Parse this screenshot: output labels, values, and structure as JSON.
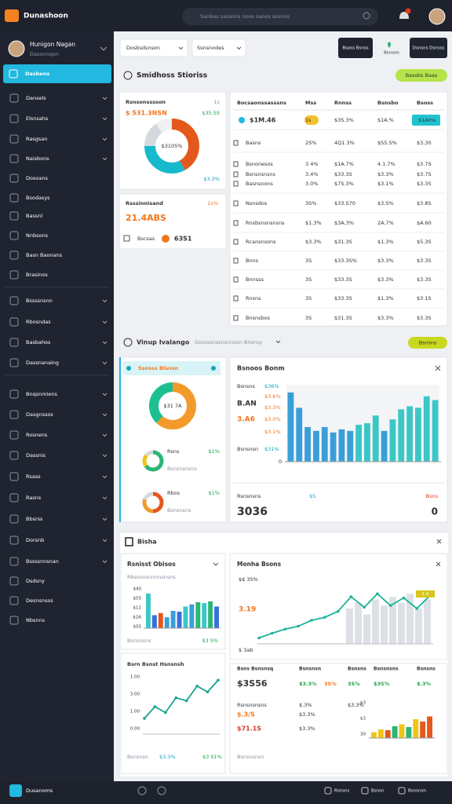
{
  "header": {
    "brand": "Dunashoon",
    "search": "Sanbos sassons noos sanos sosnos"
  },
  "user": {
    "name": "Hunigon Nagan",
    "role": "Dasonnqon"
  },
  "sidebar": {
    "active": "Dasbens",
    "items": [
      "Dansels",
      "Elsnsahs",
      "Rasgsan",
      "Naisbons",
      "Dosoans",
      "Bsodasys",
      "Bassnl",
      "Nnbsons",
      "Basn Baonans",
      "Brasinos",
      "Bssssnsnn",
      "Rbosndas",
      "Basbahos",
      "Dassnanaing",
      "Bnqsnmiens",
      "Dasgnssos",
      "Rosnens",
      "Dassnis",
      "Rsass",
      "Rasns",
      "Bbsrss",
      "Dorsnb",
      "Bssssnnsnan",
      "Dsdsny",
      "Desnsnsos",
      "Nbsnns"
    ]
  },
  "toolbar": {
    "filters": [
      "Dosbsdsnson",
      "Ssnsnodes"
    ],
    "buttons": [
      "Bsass Bsnss",
      "Bsnson",
      "Dsnsns Dsnsss"
    ]
  },
  "section1": {
    "title": "Smidhoss Stioriss",
    "action": "Bassbs Baas"
  },
  "donut_card": {
    "title": "Rsnsonsssson",
    "badge": "1s",
    "value": "$ 531.3NSN",
    "delta": "$35.5S",
    "center": "$3105%",
    "foot": "$3.3%",
    "values": [
      42,
      33,
      15,
      10
    ],
    "colors": [
      "#e4581c",
      "#17b9cc",
      "#d5d9de",
      "#eef0f2"
    ]
  },
  "small_card": {
    "title": "Rsssinnisand",
    "badge": "1s%",
    "value": "21.4ABS",
    "label": "Bscsas",
    "value2": "63S1"
  },
  "table": {
    "columns": [
      "Bocsaonssasssns",
      "Mss",
      "Rnnss",
      "Bsnsbo",
      "Bsoss"
    ],
    "rows": [
      {
        "cells": [
          "$1M.46",
          "1s",
          "$3S.3%",
          "$1A.%",
          "$1Ams"
        ],
        "colors": [
          "#222",
          "#222",
          "#d63b2b",
          "#d63b2b",
          "#fff"
        ]
      },
      {
        "cells": [
          "Basns",
          "2S%",
          "4Q1.3%",
          "$S5.S%",
          "$3.30"
        ],
        "colors": [
          "#333",
          "#777",
          "#1fa34a",
          "#777",
          "#555"
        ]
      },
      {
        "cells": [
          "Bsnonesos",
          "3 4%",
          "$1A.7%",
          "4.1.7%",
          "$3.7S"
        ],
        "colors": [
          "#333",
          "#555",
          "#1fa34a",
          "#f2761f",
          "#d63b2b"
        ]
      },
      {
        "cells": [
          "Bsnsnsnsns",
          "3.4%",
          "$33.3S",
          "$3.3%",
          "$3.7S"
        ],
        "colors": [
          "#333",
          "#555",
          "#1fa34a",
          "#555",
          "#555"
        ]
      },
      {
        "cells": [
          "Basnsnons",
          "3.0%",
          "$7S.3%",
          "$3.1%",
          "$3.3S"
        ],
        "colors": [
          "#333",
          "#555",
          "#d63b2b",
          "#555",
          "#555"
        ]
      },
      {
        "cells": [
          "Nsnsdos",
          "3S%",
          "$33.S70",
          "$3.S%",
          "$3.8S"
        ],
        "colors": [
          "#333",
          "#777",
          "#1fa34a",
          "#777",
          "#555"
        ]
      },
      {
        "cells": [
          "Rnsbsnsnsnsns",
          "$1.3%",
          "$3A.3%",
          "2A.7%",
          "$A.60"
        ],
        "colors": [
          "#333",
          "#333",
          "#1fa34a",
          "#555",
          "#1fa34a"
        ]
      },
      {
        "cells": [
          "Rcansnsons",
          "$3.3%",
          "$31.3S",
          "$1.3%",
          "$5.3S"
        ],
        "colors": [
          "#333",
          "#333",
          "#1fa34a",
          "#1fa34a",
          "#1fa34a"
        ]
      },
      {
        "cells": [
          "Bnns",
          "3S",
          "$33.3S%",
          "$3.3%",
          "$3.3S"
        ],
        "colors": [
          "#333",
          "#777",
          "#777",
          "#777",
          "#777"
        ]
      },
      {
        "cells": [
          "Bnnsss",
          "3S",
          "$33.3S",
          "$3.3%",
          "$3.3S"
        ],
        "colors": [
          "#333",
          "#777",
          "#777",
          "#777",
          "#777"
        ]
      },
      {
        "cells": [
          "Rnsns",
          "3S",
          "$33.3S",
          "$1.3%",
          "$3.1S"
        ],
        "colors": [
          "#1fa34a",
          "#1fa34a",
          "#1fa34a",
          "#1fa34a",
          "#1fa34a"
        ]
      },
      {
        "cells": [
          "Bnsnsbos",
          "3S",
          "$31.3S",
          "$3.3%",
          "$3.3S"
        ],
        "colors": [
          "#555",
          "#777",
          "#777",
          "#777",
          "#777"
        ]
      }
    ]
  },
  "section2": {
    "title": "Vinup Ivalango",
    "subtitle": "Gsnsssnssnsnnson Bnsnsy",
    "action": "Bsnsns"
  },
  "donut2_card": {
    "title": "Ssnsss Blsnsn",
    "center": "$31 7A",
    "values": [
      62,
      38
    ],
    "colors": [
      "#f39a2a",
      "#1dbf91"
    ],
    "minis": [
      {
        "label": "Rsns",
        "sub": "Bsnsnsnsns",
        "value": "$1%",
        "values": [
          65,
          20,
          15
        ],
        "colors": [
          "#2bb673",
          "#f0c419",
          "#d5d9de"
        ]
      },
      {
        "label": "Rbos",
        "sub": "Bsnsnsns",
        "value": "$1%",
        "values": [
          50,
          30,
          20
        ],
        "colors": [
          "#e4581c",
          "#f39a2a",
          "#d5d9de"
        ]
      }
    ]
  },
  "bar_card": {
    "title": "Bsnoos Bonm",
    "side": [
      "Bsnsns",
      "$36%",
      "$3.6%",
      "B.AN",
      "$3.3%",
      "3.A6",
      "$3.0%",
      "$3.1%",
      "Bsnsnsn",
      "$31%",
      "0"
    ],
    "values": [
      90,
      70,
      45,
      40,
      45,
      38,
      42,
      40,
      48,
      50,
      60,
      40,
      55,
      68,
      72,
      70,
      85,
      80
    ],
    "colors": [
      "#3a9fd8",
      "#3a9fd8",
      "#3a9fd8",
      "#3a9fd8",
      "#3a9fd8",
      "#3a9fd8",
      "#3a9fd8",
      "#3a9fd8",
      "#3cc7c7",
      "#3cc7c7",
      "#3cc7c7",
      "#3a9fd8",
      "#3cc7c7",
      "#3cc7c7",
      "#3cc7c7",
      "#3cc7c7",
      "#3cc7c7",
      "#3cc7c7"
    ],
    "ylim": [
      0,
      100
    ],
    "foot_label": "Rsnsnsns",
    "foot_delta": "$S",
    "foot_right": "Bsns",
    "foot_value": "3036",
    "foot_value2": "0"
  },
  "section3": {
    "title": "Bisha"
  },
  "mini_bars": {
    "title": "Rsnisst Obisos",
    "subtitle": "Rbsosnsnnnnsnsns",
    "ylabels": [
      "$40",
      "$5S",
      "$11",
      "$2A",
      "$SS"
    ],
    "values": [
      80,
      30,
      35,
      25,
      40,
      38,
      50,
      55,
      60,
      58,
      62,
      50
    ],
    "colors": [
      "#3cc7c7",
      "#3a6fd8",
      "#e4581c",
      "#3a9fd8",
      "#3a9fd8",
      "#3a6fd8",
      "#3cc7c7",
      "#3a9fd8",
      "#2bb673",
      "#3cc7c7",
      "#2bb673",
      "#3a6fd8"
    ],
    "ylim": [
      0,
      100
    ],
    "foot": "Bsnsnsns",
    "foot_value": "$3 S%"
  },
  "line_b": {
    "title": "Bsrn Bsnst Hsnsnsh",
    "ylabels": [
      "1.00",
      "3.00",
      "1.00",
      "0.00"
    ],
    "values": [
      20,
      40,
      30,
      55,
      50,
      75,
      65,
      85
    ],
    "color": "#17a38f",
    "ylim": [
      0,
      100
    ],
    "foot": "Bsnsnsn",
    "foot_a": "$3.3%",
    "foot_b": "$3 S1%"
  },
  "line_c": {
    "title": "Monha Bsons",
    "labels": [
      "$$ 3S%",
      "3.19",
      "$ 3ab"
    ],
    "badge": "1.0",
    "values": [
      10,
      18,
      25,
      30,
      40,
      45,
      55,
      80,
      62,
      85,
      65,
      78,
      60,
      82
    ],
    "color": "#1db39a",
    "bars": [
      60,
      70,
      50,
      75,
      65,
      80,
      70,
      85,
      60,
      75
    ],
    "ylim": [
      0,
      100
    ]
  },
  "table_d": {
    "headers": [
      "Bsns Bsnsnsq",
      "Bsnsnsn",
      "Bsnsns",
      "Bsnsnsns",
      "Bsnsns"
    ],
    "main": "$3S56",
    "cells": [
      "$3.3%",
      "3S%",
      "3S%",
      "$3S%",
      "$.3%"
    ],
    "sub": [
      "Rsnsnsnsns",
      "$.3/S",
      "$71.1S"
    ],
    "subcells": [
      "$.3%",
      "$3.3%",
      "$3.3%",
      "$3.3%"
    ],
    "ylabels": [
      "$3",
      "$3",
      "30"
    ],
    "values": [
      15,
      22,
      20,
      30,
      35,
      28,
      48,
      42,
      55
    ],
    "colors": [
      "#f0c419",
      "#f0c419",
      "#e4581c",
      "#2bb673",
      "#f0c419",
      "#2bb673",
      "#f0c419",
      "#e4581c",
      "#e4581c"
    ],
    "ylim": [
      0,
      100
    ],
    "foot": "Bsnsnsnsn"
  },
  "bottom": {
    "label": "Dusanoms",
    "icons": [
      "Rsnsns",
      "Bsnsn",
      "Bsnsnsn"
    ]
  }
}
